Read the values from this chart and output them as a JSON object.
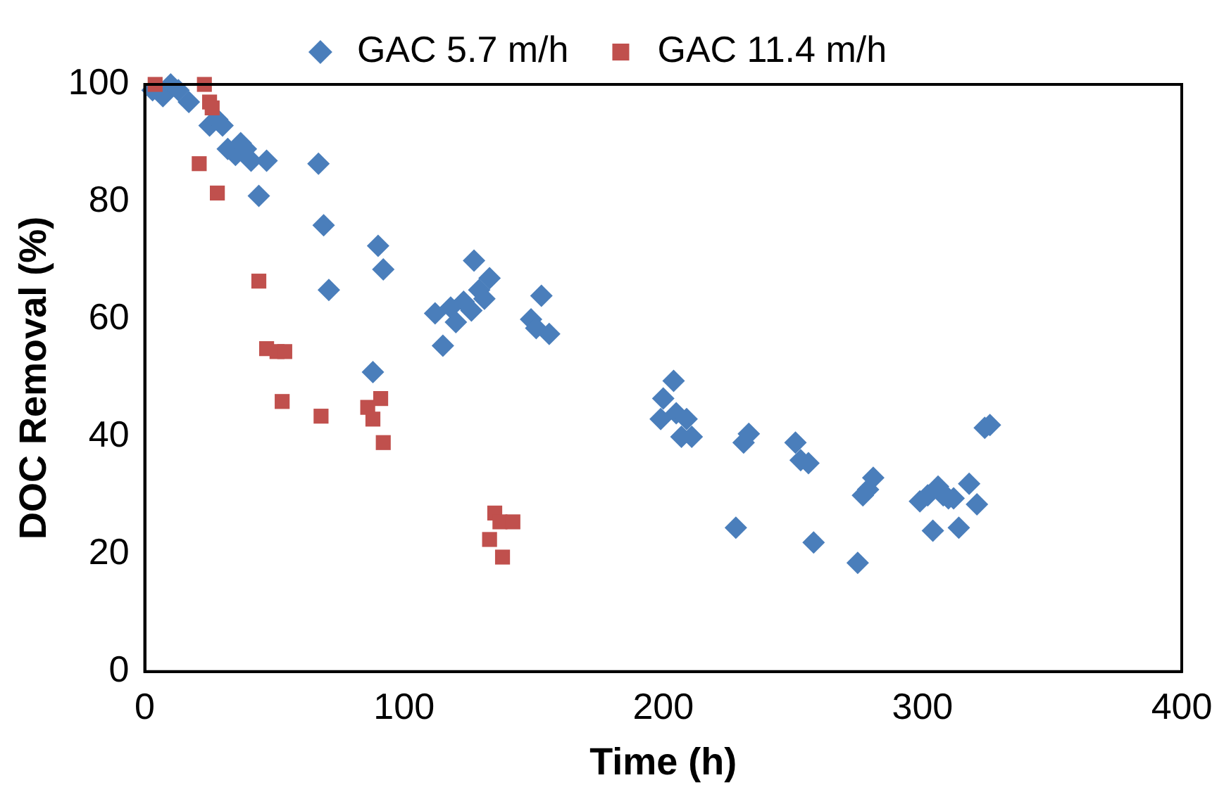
{
  "chart_data": {
    "type": "scatter",
    "xlabel": "Time (h)",
    "ylabel": "DOC Removal (%)",
    "xlim": [
      0,
      400
    ],
    "xticks": [
      0,
      100,
      200,
      300,
      400
    ],
    "ylim": [
      0,
      100
    ],
    "yticks": [
      0,
      20,
      40,
      60,
      80,
      100
    ],
    "grid": false,
    "legend": "top",
    "series": [
      {
        "name": "GAC 5.7 m/h",
        "color": "#4a7ebb",
        "marker": "diamond",
        "x": [
          3,
          7,
          10,
          13,
          17,
          25,
          28,
          30,
          32,
          35,
          37,
          39,
          41,
          44,
          47,
          67,
          69,
          71,
          88,
          90,
          92,
          112,
          115,
          118,
          120,
          123,
          126,
          127,
          129,
          131,
          133,
          149,
          151,
          153,
          156,
          199,
          200,
          204,
          205,
          207,
          209,
          211,
          228,
          231,
          233,
          251,
          253,
          256,
          258,
          275,
          277,
          279,
          281,
          299,
          302,
          304,
          306,
          308,
          310,
          312,
          314,
          318,
          321,
          324,
          326
        ],
        "values": [
          99,
          98,
          100,
          99,
          97,
          93,
          94,
          93,
          89,
          88,
          90,
          89,
          87,
          81,
          87,
          86.5,
          76,
          65,
          51,
          72.5,
          68.5,
          61,
          55.5,
          62,
          59.5,
          63,
          61.5,
          70,
          65,
          63.5,
          67,
          60,
          58.5,
          64,
          57.5,
          43,
          46.5,
          49.5,
          44,
          40,
          43,
          40,
          24.5,
          39,
          40.5,
          39,
          36,
          35.5,
          22,
          18.5,
          30,
          31,
          33,
          29,
          30,
          24,
          31.5,
          30,
          29.5,
          29.5,
          24.5,
          32,
          28.5,
          41.5,
          42
        ]
      },
      {
        "name": "GAC 11.4 m/h",
        "color": "#c0504d",
        "marker": "square",
        "x": [
          4,
          23,
          21,
          25,
          26,
          28,
          44,
          47,
          51,
          54,
          53,
          68,
          86,
          88,
          91,
          92,
          133,
          135,
          137,
          138,
          142
        ],
        "values": [
          100,
          100,
          86.5,
          97,
          96,
          81.5,
          66.5,
          55,
          54.5,
          54.5,
          46,
          43.5,
          45,
          43,
          46.5,
          39,
          22.5,
          27,
          25.5,
          19.5,
          25.5
        ]
      }
    ]
  }
}
